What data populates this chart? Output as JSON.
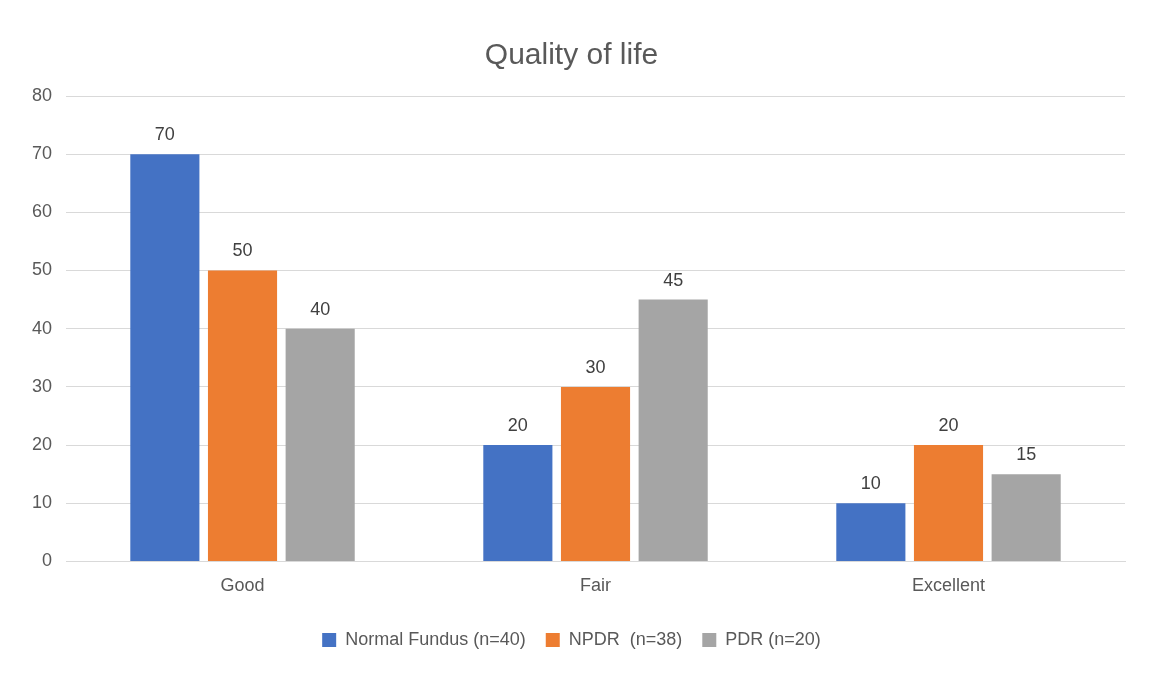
{
  "chart_data": {
    "type": "bar",
    "title": "Quality of life",
    "categories": [
      "Good",
      "Fair",
      "Excellent"
    ],
    "series": [
      {
        "name": "Normal Fundus (n=40)",
        "color": "#4472c4",
        "values": [
          70,
          20,
          10
        ]
      },
      {
        "name": "NPDR  (n=38)",
        "color": "#ed7d31",
        "values": [
          50,
          30,
          20
        ]
      },
      {
        "name": "PDR (n=20)",
        "color": "#a5a5a5",
        "values": [
          40,
          45,
          15
        ]
      }
    ],
    "ylim": [
      0,
      80
    ],
    "yticks": [
      0,
      10,
      20,
      30,
      40,
      50,
      60,
      70,
      80
    ],
    "grid": "y",
    "legend": "bottom",
    "data_labels": true
  }
}
